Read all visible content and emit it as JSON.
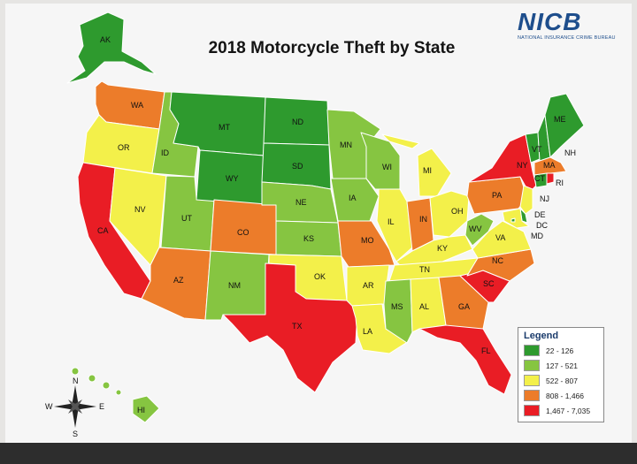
{
  "title": "2018 Motorcycle Theft by State",
  "logo": {
    "name": "NICB",
    "subtitle": "NATIONAL INSURANCE CRIME BUREAU"
  },
  "legend": {
    "title": "Legend",
    "items": [
      {
        "range": "22 - 126",
        "color": "#2e9a2e"
      },
      {
        "range": "127 - 521",
        "color": "#86c541"
      },
      {
        "range": "522 - 807",
        "color": "#f3f04a"
      },
      {
        "range": "808 - 1,466",
        "color": "#ec7c2a"
      },
      {
        "range": "1,467 - 7,035",
        "color": "#e91d25"
      }
    ]
  },
  "states": {
    "AK": "22 - 126",
    "WA": "808 - 1,466",
    "OR": "522 - 807",
    "CA": "1,467 - 7,035",
    "ID": "127 - 521",
    "NV": "522 - 807",
    "UT": "127 - 521",
    "AZ": "808 - 1,466",
    "MT": "22 - 126",
    "WY": "22 - 126",
    "CO": "808 - 1,466",
    "NM": "127 - 521",
    "ND": "22 - 126",
    "SD": "22 - 126",
    "NE": "127 - 521",
    "KS": "127 - 521",
    "OK": "522 - 807",
    "TX": "1,467 - 7,035",
    "MN": "127 - 521",
    "IA": "127 - 521",
    "MO": "808 - 1,466",
    "AR": "522 - 807",
    "LA": "522 - 807",
    "WI": "127 - 521",
    "IL": "522 - 807",
    "MI": "522 - 807",
    "IN": "808 - 1,466",
    "OH": "522 - 807",
    "KY": "522 - 807",
    "TN": "522 - 807",
    "MS": "127 - 521",
    "AL": "522 - 807",
    "GA": "808 - 1,466",
    "FL": "1,467 - 7,035",
    "SC": "1,467 - 7,035",
    "NC": "808 - 1,466",
    "VA": "522 - 807",
    "WV": "127 - 521",
    "PA": "808 - 1,466",
    "NY": "1,467 - 7,035",
    "VT": "22 - 126",
    "NH": "22 - 126",
    "ME": "22 - 126",
    "MA": "808 - 1,466",
    "RI": "1,467 - 7,035",
    "CT": "22 - 126",
    "NJ": "522 - 807",
    "DE": "22 - 126",
    "MD": "522 - 807",
    "DC": "22 - 126",
    "HI": "127 - 521"
  },
  "compass": {
    "n": "N",
    "s": "S",
    "e": "E",
    "w": "W"
  }
}
